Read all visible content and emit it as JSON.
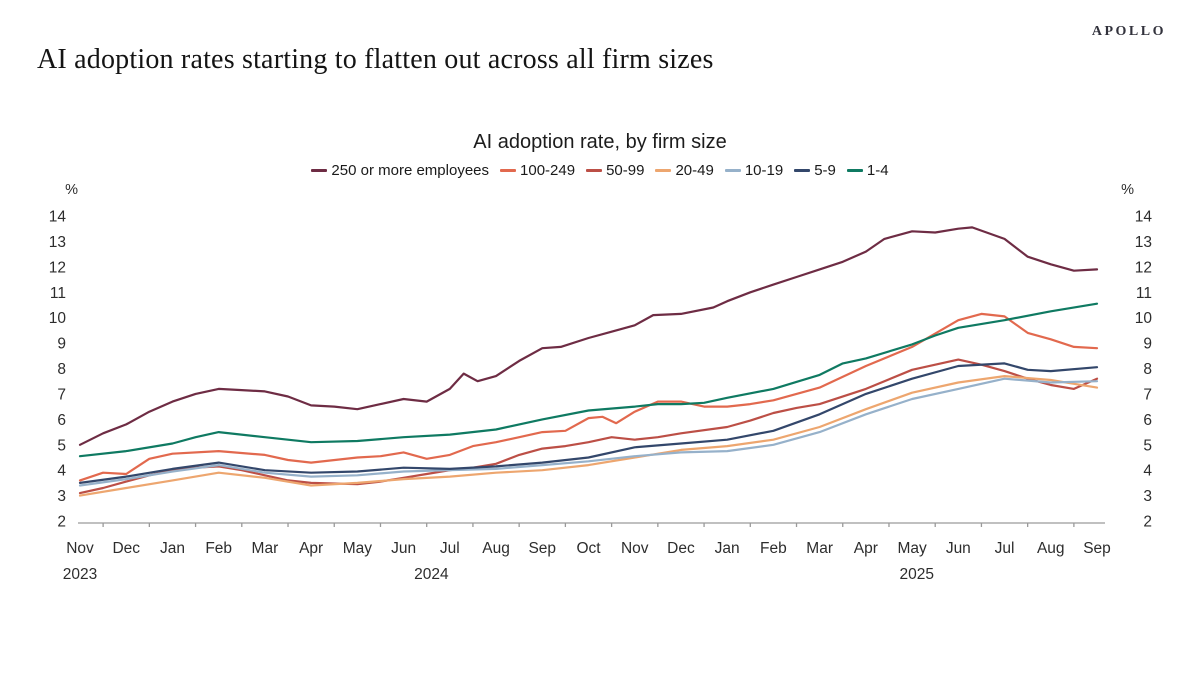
{
  "brand": "APOLLO",
  "page_title": "AI adoption rates starting to flatten out across all firm sizes",
  "chart_data": {
    "type": "line",
    "title": "AI adoption rate, by firm size",
    "unit_label": "%",
    "ylim": [
      2,
      14
    ],
    "ytick_step": 1,
    "grid": false,
    "legend_position": "top",
    "axis_color": "#9a9a9a",
    "x_axis": {
      "months": [
        "Nov",
        "Dec",
        "Jan",
        "Feb",
        "Mar",
        "Apr",
        "May",
        "Jun",
        "Jul",
        "Aug",
        "Sep",
        "Oct",
        "Nov",
        "Dec",
        "Jan",
        "Feb",
        "Mar",
        "Apr",
        "May",
        "Jun",
        "Jul",
        "Aug",
        "Sep"
      ],
      "years": [
        {
          "label": "2023",
          "month_index": 0
        },
        {
          "label": "2024",
          "month_index": 7.6
        },
        {
          "label": "2025",
          "month_index": 18.1
        }
      ]
    },
    "series": [
      {
        "name": "250 or more employees",
        "color": "#6e2c44",
        "points": [
          [
            0,
            5.0
          ],
          [
            0.5,
            5.45
          ],
          [
            1,
            5.8
          ],
          [
            1.5,
            6.3
          ],
          [
            2,
            6.7
          ],
          [
            2.5,
            7.0
          ],
          [
            3,
            7.2
          ],
          [
            3.5,
            7.15
          ],
          [
            4,
            7.1
          ],
          [
            4.5,
            6.9
          ],
          [
            5,
            6.55
          ],
          [
            5.5,
            6.5
          ],
          [
            6,
            6.4
          ],
          [
            6.5,
            6.6
          ],
          [
            7,
            6.8
          ],
          [
            7.5,
            6.7
          ],
          [
            8,
            7.2
          ],
          [
            8.3,
            7.8
          ],
          [
            8.6,
            7.5
          ],
          [
            9,
            7.7
          ],
          [
            9.5,
            8.3
          ],
          [
            10,
            8.8
          ],
          [
            10.4,
            8.85
          ],
          [
            11,
            9.2
          ],
          [
            11.5,
            9.45
          ],
          [
            12,
            9.7
          ],
          [
            12.4,
            10.1
          ],
          [
            13,
            10.15
          ],
          [
            13.7,
            10.4
          ],
          [
            14,
            10.65
          ],
          [
            14.5,
            11.0
          ],
          [
            15,
            11.3
          ],
          [
            15.5,
            11.6
          ],
          [
            16,
            11.9
          ],
          [
            16.5,
            12.2
          ],
          [
            17,
            12.6
          ],
          [
            17.4,
            13.1
          ],
          [
            18,
            13.4
          ],
          [
            18.5,
            13.35
          ],
          [
            19,
            13.5
          ],
          [
            19.3,
            13.55
          ],
          [
            20,
            13.1
          ],
          [
            20.5,
            12.4
          ],
          [
            21,
            12.1
          ],
          [
            21.5,
            11.85
          ],
          [
            22,
            11.9
          ]
        ]
      },
      {
        "name": "100-249",
        "color": "#e2694e",
        "points": [
          [
            0,
            3.6
          ],
          [
            0.5,
            3.9
          ],
          [
            1,
            3.85
          ],
          [
            1.5,
            4.45
          ],
          [
            2,
            4.65
          ],
          [
            3,
            4.75
          ],
          [
            4,
            4.6
          ],
          [
            4.5,
            4.4
          ],
          [
            5,
            4.3
          ],
          [
            6,
            4.5
          ],
          [
            6.5,
            4.55
          ],
          [
            7,
            4.7
          ],
          [
            7.5,
            4.45
          ],
          [
            8,
            4.6
          ],
          [
            8.5,
            4.95
          ],
          [
            9,
            5.1
          ],
          [
            9.5,
            5.3
          ],
          [
            10,
            5.5
          ],
          [
            10.5,
            5.55
          ],
          [
            11,
            6.05
          ],
          [
            11.3,
            6.1
          ],
          [
            11.6,
            5.85
          ],
          [
            12,
            6.3
          ],
          [
            12.5,
            6.7
          ],
          [
            13,
            6.7
          ],
          [
            13.5,
            6.5
          ],
          [
            14,
            6.5
          ],
          [
            14.5,
            6.6
          ],
          [
            15,
            6.75
          ],
          [
            15.5,
            7.0
          ],
          [
            16,
            7.25
          ],
          [
            17,
            8.1
          ],
          [
            18,
            8.85
          ],
          [
            19,
            9.9
          ],
          [
            19.5,
            10.15
          ],
          [
            20,
            10.05
          ],
          [
            20.5,
            9.4
          ],
          [
            21,
            9.15
          ],
          [
            21.5,
            8.85
          ],
          [
            22,
            8.8
          ]
        ]
      },
      {
        "name": "50-99",
        "color": "#bc4f46",
        "points": [
          [
            0,
            3.1
          ],
          [
            0.5,
            3.3
          ],
          [
            1,
            3.55
          ],
          [
            1.5,
            3.8
          ],
          [
            2,
            4.0
          ],
          [
            2.5,
            4.1
          ],
          [
            3,
            4.15
          ],
          [
            3.5,
            4.0
          ],
          [
            4,
            3.8
          ],
          [
            4.5,
            3.6
          ],
          [
            5,
            3.5
          ],
          [
            6,
            3.45
          ],
          [
            6.5,
            3.55
          ],
          [
            7,
            3.7
          ],
          [
            7.5,
            3.85
          ],
          [
            8,
            4.0
          ],
          [
            8.5,
            4.1
          ],
          [
            9,
            4.25
          ],
          [
            9.5,
            4.6
          ],
          [
            10,
            4.85
          ],
          [
            10.5,
            4.95
          ],
          [
            11,
            5.1
          ],
          [
            11.5,
            5.3
          ],
          [
            12,
            5.2
          ],
          [
            12.5,
            5.3
          ],
          [
            13,
            5.45
          ],
          [
            14,
            5.7
          ],
          [
            14.5,
            5.95
          ],
          [
            15,
            6.25
          ],
          [
            15.5,
            6.45
          ],
          [
            16,
            6.6
          ],
          [
            17,
            7.2
          ],
          [
            18,
            7.95
          ],
          [
            19,
            8.35
          ],
          [
            19.5,
            8.15
          ],
          [
            20,
            7.9
          ],
          [
            20.5,
            7.6
          ],
          [
            21,
            7.35
          ],
          [
            21.5,
            7.2
          ],
          [
            22,
            7.6
          ]
        ]
      },
      {
        "name": "20-49",
        "color": "#eda66f",
        "points": [
          [
            0,
            3.0
          ],
          [
            1,
            3.3
          ],
          [
            2,
            3.6
          ],
          [
            3,
            3.9
          ],
          [
            4,
            3.7
          ],
          [
            5,
            3.4
          ],
          [
            6,
            3.5
          ],
          [
            7,
            3.65
          ],
          [
            8,
            3.75
          ],
          [
            9,
            3.9
          ],
          [
            10,
            4.0
          ],
          [
            11,
            4.2
          ],
          [
            12,
            4.5
          ],
          [
            13,
            4.8
          ],
          [
            14,
            4.95
          ],
          [
            15,
            5.2
          ],
          [
            16,
            5.7
          ],
          [
            17,
            6.4
          ],
          [
            18,
            7.05
          ],
          [
            19,
            7.45
          ],
          [
            20,
            7.7
          ],
          [
            21,
            7.55
          ],
          [
            22,
            7.25
          ]
        ]
      },
      {
        "name": "10-19",
        "color": "#96b1ca",
        "points": [
          [
            0,
            3.4
          ],
          [
            1,
            3.65
          ],
          [
            2,
            3.95
          ],
          [
            3,
            4.2
          ],
          [
            4,
            3.9
          ],
          [
            5,
            3.75
          ],
          [
            6,
            3.8
          ],
          [
            7,
            3.95
          ],
          [
            8,
            4.0
          ],
          [
            9,
            4.05
          ],
          [
            10,
            4.2
          ],
          [
            11,
            4.35
          ],
          [
            12,
            4.55
          ],
          [
            13,
            4.7
          ],
          [
            14,
            4.75
          ],
          [
            15,
            5.0
          ],
          [
            16,
            5.5
          ],
          [
            17,
            6.2
          ],
          [
            18,
            6.8
          ],
          [
            19,
            7.2
          ],
          [
            20,
            7.6
          ],
          [
            21,
            7.45
          ],
          [
            22,
            7.5
          ]
        ]
      },
      {
        "name": "5-9",
        "color": "#33476b",
        "points": [
          [
            0,
            3.5
          ],
          [
            1,
            3.75
          ],
          [
            2,
            4.05
          ],
          [
            3,
            4.3
          ],
          [
            4,
            4.0
          ],
          [
            5,
            3.9
          ],
          [
            6,
            3.95
          ],
          [
            7,
            4.1
          ],
          [
            8,
            4.05
          ],
          [
            9,
            4.15
          ],
          [
            10,
            4.3
          ],
          [
            11,
            4.5
          ],
          [
            12,
            4.9
          ],
          [
            13,
            5.05
          ],
          [
            14,
            5.2
          ],
          [
            15,
            5.55
          ],
          [
            16,
            6.2
          ],
          [
            17,
            7.0
          ],
          [
            18,
            7.6
          ],
          [
            19,
            8.1
          ],
          [
            20,
            8.2
          ],
          [
            20.5,
            7.95
          ],
          [
            21,
            7.9
          ],
          [
            22,
            8.05
          ]
        ]
      },
      {
        "name": "1-4",
        "color": "#0f7a62",
        "points": [
          [
            0,
            4.55
          ],
          [
            1,
            4.75
          ],
          [
            2,
            5.05
          ],
          [
            2.5,
            5.3
          ],
          [
            3,
            5.5
          ],
          [
            4,
            5.3
          ],
          [
            5,
            5.1
          ],
          [
            6,
            5.15
          ],
          [
            7,
            5.3
          ],
          [
            8,
            5.4
          ],
          [
            9,
            5.6
          ],
          [
            10,
            6.0
          ],
          [
            11,
            6.35
          ],
          [
            12,
            6.5
          ],
          [
            12.5,
            6.6
          ],
          [
            13,
            6.6
          ],
          [
            13.5,
            6.65
          ],
          [
            14,
            6.85
          ],
          [
            15,
            7.2
          ],
          [
            16,
            7.75
          ],
          [
            16.5,
            8.2
          ],
          [
            17,
            8.4
          ],
          [
            18,
            8.95
          ],
          [
            18.5,
            9.3
          ],
          [
            19,
            9.6
          ],
          [
            20,
            9.9
          ],
          [
            21,
            10.25
          ],
          [
            22,
            10.55
          ]
        ]
      }
    ]
  }
}
